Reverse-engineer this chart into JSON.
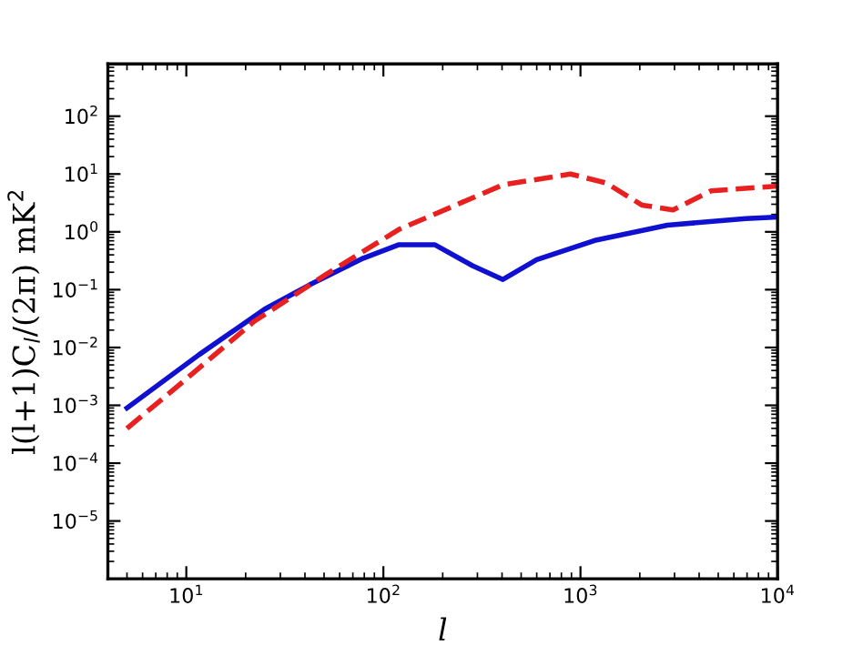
{
  "chart_data": {
    "type": "line",
    "xlabel": "l",
    "ylabel": "l(l+1)C$_{l}$/(2π) mK$^{2}$",
    "log": "xy",
    "grid": false,
    "xlim": [
      4,
      10000
    ],
    "ylim": [
      1e-06,
      800
    ],
    "xticks": [
      {
        "value": 10,
        "label": "10$^{1}$"
      },
      {
        "value": 100,
        "label": "10$^{2}$"
      },
      {
        "value": 1000,
        "label": "10$^{3}$"
      },
      {
        "value": 10000,
        "label": "10$^{4}$"
      }
    ],
    "yticks": [
      {
        "value": 1e-05,
        "label": "10$^{−5}$"
      },
      {
        "value": 0.0001,
        "label": "10$^{−4}$"
      },
      {
        "value": 0.001,
        "label": "10$^{−3}$"
      },
      {
        "value": 0.01,
        "label": "10$^{−2}$"
      },
      {
        "value": 0.1,
        "label": "10$^{−1}$"
      },
      {
        "value": 1,
        "label": "10$^{0}$"
      },
      {
        "value": 10,
        "label": "10$^{1}$"
      },
      {
        "value": 100,
        "label": "10$^{2}$"
      }
    ],
    "series": [
      {
        "color": "#1010d0",
        "line_style": "solid",
        "x": [
          5,
          11.6,
          25,
          42,
          79,
          120,
          182,
          283,
          404,
          600,
          1180,
          2760,
          6900,
          10000
        ],
        "values": [
          0.0009,
          0.0075,
          0.046,
          0.12,
          0.35,
          0.6,
          0.6,
          0.26,
          0.15,
          0.33,
          0.71,
          1.3,
          1.7,
          1.8
        ]
      },
      {
        "color": "#e82020",
        "line_style": "dashed",
        "x": [
          5,
          9.4,
          22,
          52,
          120,
          404,
          890,
          1350,
          2050,
          2950,
          4600,
          10000
        ],
        "values": [
          0.0004,
          0.0024,
          0.028,
          0.19,
          1.1,
          6.5,
          10,
          7,
          2.9,
          2.4,
          5.1,
          6.2
        ]
      }
    ]
  }
}
